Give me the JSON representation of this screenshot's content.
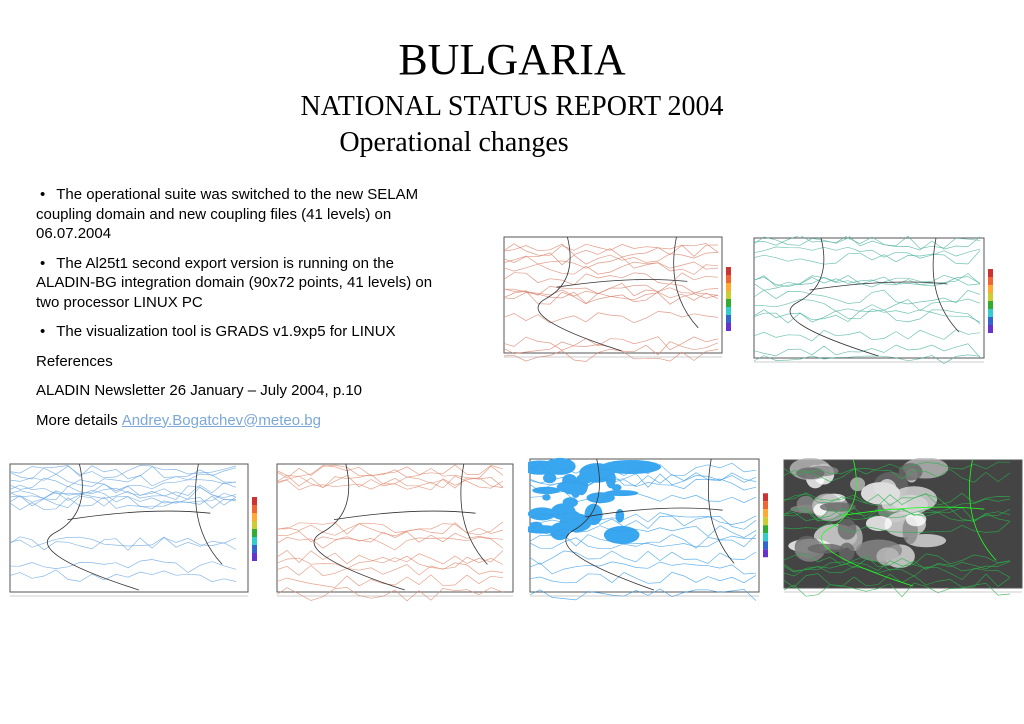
{
  "header": {
    "title": "BULGARIA",
    "subtitle": "NATIONAL STATUS REPORT 2004",
    "section": "Operational changes"
  },
  "bullets": [
    "The operational suite was switched to the new SELAM coupling domain and new coupling files (41 levels) on 06.07.2004",
    "The Al25t1 second export version is running on the ALADIN-BG integration domain (90x72 points, 41 levels) on two processor LINUX PC",
    "The visualization tool is GRADS v1.9xp5 for LINUX"
  ],
  "references": {
    "heading": "References",
    "item": "ALADIN Newsletter 26 January – July 2004, p.10"
  },
  "more_details": {
    "label": "More details",
    "link": "Andrey.Bogatchev@meteo.bg"
  }
}
